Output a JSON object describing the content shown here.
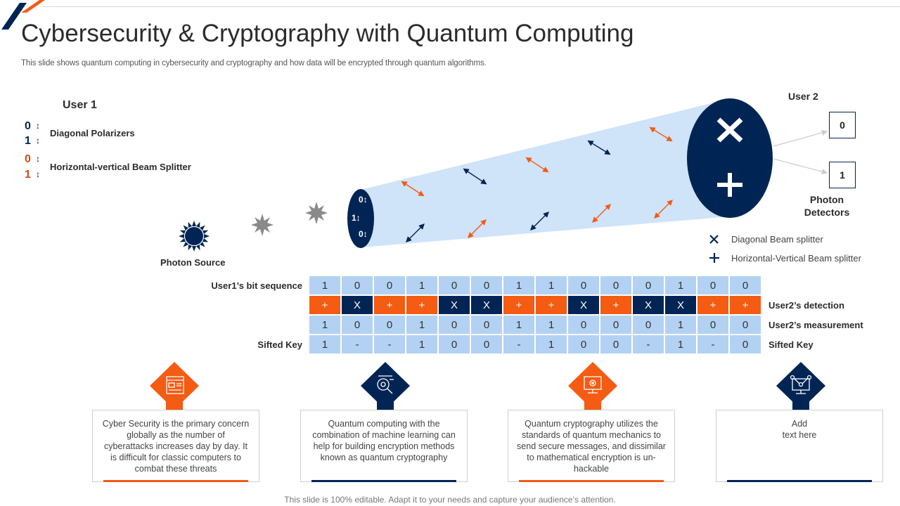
{
  "header": {
    "title": "Cybersecurity & Cryptography with Quantum Computing",
    "subtitle": "This slide shows quantum computing in cybersecurity and cryptography and how data will be encrypted through quantum algorithms."
  },
  "colors": {
    "navy": "#002554",
    "orange": "#f45b13",
    "light_blue": "#b3d1f2",
    "beam": "#cfe3f9"
  },
  "user1": {
    "title": "User 1",
    "legend": [
      {
        "bits": [
          "0",
          "1"
        ],
        "color": "#002554",
        "label": "Diagonal Polarizers"
      },
      {
        "bits": [
          "0",
          "1"
        ],
        "color": "#c8501a",
        "label": "Horizontal-vertical Beam Splitter"
      }
    ]
  },
  "photon_source": {
    "label": "Photon Source"
  },
  "emitter_bits": [
    "0↕",
    "1↕",
    "0↕"
  ],
  "user2": {
    "title": "User 2",
    "detector_values": [
      "0",
      "1"
    ],
    "detectors_label_line1": "Photon",
    "detectors_label_line2": "Detectors",
    "splitter_legend": [
      {
        "symbol": "✕",
        "icon": "x-icon",
        "label": "Diagonal Beam splitter"
      },
      {
        "symbol": "+",
        "icon": "plus-icon",
        "label": "Horizontal-Vertical Beam splitter"
      }
    ]
  },
  "table": {
    "left_labels": {
      "bit_sequence": "User1’s bit sequence",
      "sifted_key": "Sifted Key"
    },
    "right_labels": {
      "detection": "User2’s detection",
      "measurement": "User2’s measurement",
      "sifted_key": "Sifted Key"
    },
    "bit_sequence": [
      "1",
      "0",
      "0",
      "1",
      "0",
      "0",
      "1",
      "1",
      "0",
      "0",
      "0",
      "1",
      "0",
      "0"
    ],
    "detection": [
      "+",
      "X",
      "+",
      "+",
      "X",
      "X",
      "+",
      "+",
      "X",
      "+",
      "X",
      "X",
      "+",
      "+"
    ],
    "measurement": [
      "1",
      "0",
      "0",
      "1",
      "0",
      "0",
      "1",
      "1",
      "0",
      "0",
      "0",
      "1",
      "0",
      "0"
    ],
    "sifted_key": [
      "1",
      "-",
      "-",
      "1",
      "0",
      "0",
      "-",
      "1",
      "0",
      "0",
      "-",
      "1",
      "-",
      "0"
    ]
  },
  "cards": [
    {
      "icon": "dashboard-icon",
      "color": "#f45b13",
      "text": "Cyber Security is the primary concern globally as the number of cyberattacks increases day by day. It is difficult for classic computers to combat these threats"
    },
    {
      "icon": "analysis-icon",
      "color": "#002554",
      "text": "Quantum computing with the combination of machine learning can help for building encryption methods known as quantum cryptography"
    },
    {
      "icon": "monitor-gear-icon",
      "color": "#f45b13",
      "text": "Quantum cryptography utilizes the standards of quantum mechanics to send secure messages, and dissimilar to mathematical encryption is un-hackable"
    },
    {
      "icon": "network-monitor-icon",
      "color": "#002554",
      "text": "Add\ntext here"
    }
  ],
  "footer": "This slide is 100% editable. Adapt it to your needs and capture your audience’s attention."
}
